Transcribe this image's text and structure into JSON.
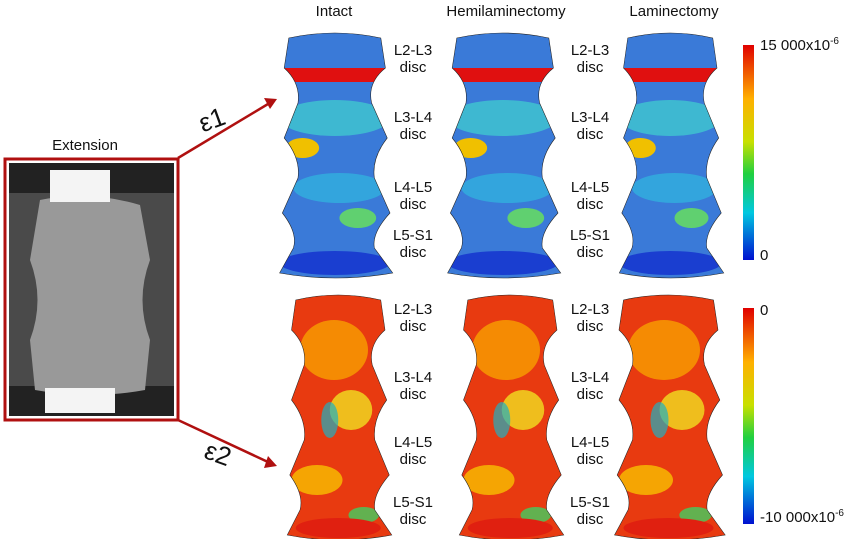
{
  "photo_label": "Extension",
  "columns": [
    "Intact",
    "Hemilaminectomy",
    "Laminectomy"
  ],
  "rows": [
    {
      "symbol": "ε1",
      "scale_max": {
        "base": "15 000x10",
        "exponent": "-6"
      },
      "scale_min": {
        "base": "0"
      }
    },
    {
      "symbol": "ε2",
      "scale_max": {
        "base": "0"
      },
      "scale_min": {
        "base": "-10 000x10",
        "exponent": "-6"
      }
    }
  ],
  "discs": [
    {
      "level": "L2-L3",
      "word": "disc"
    },
    {
      "level": "L3-L4",
      "word": "disc"
    },
    {
      "level": "L4-L5",
      "word": "disc"
    },
    {
      "level": "L5-S1",
      "word": "disc"
    }
  ]
}
